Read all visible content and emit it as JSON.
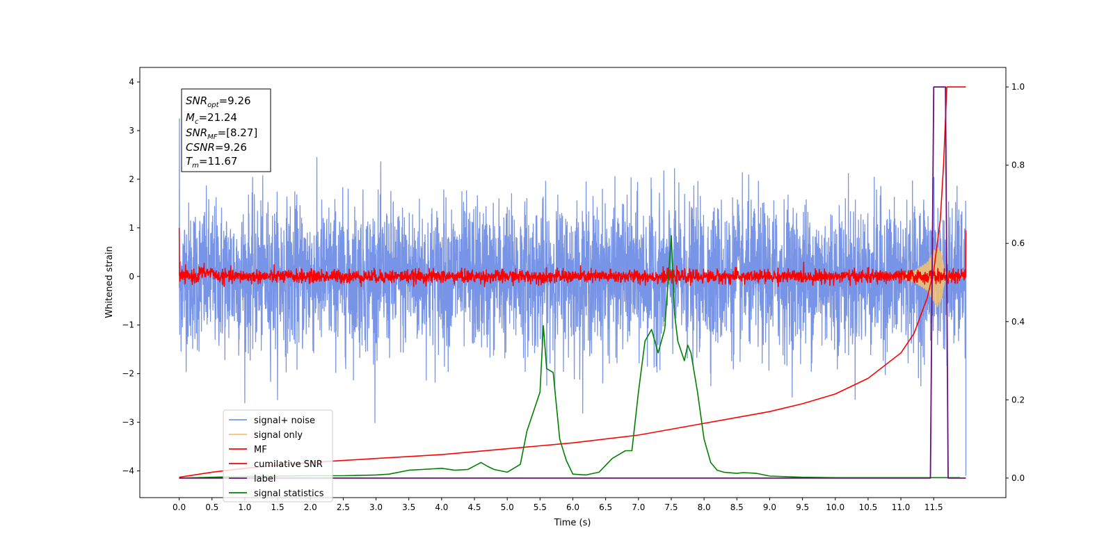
{
  "chart_data": {
    "type": "line",
    "xlabel": "Time (s)",
    "ylabel": "Whitened strain",
    "xlim": [
      -0.6,
      12.6
    ],
    "ylim": [
      -4.55,
      4.3
    ],
    "y2lim": [
      -0.05,
      1.05
    ],
    "x_ticks": [
      "0.0",
      "0.5",
      "1.0",
      "1.5",
      "2.0",
      "2.5",
      "3.0",
      "3.5",
      "4.0",
      "4.5",
      "5.0",
      "5.5",
      "6.0",
      "6.5",
      "7.0",
      "7.5",
      "8.0",
      "8.5",
      "9.0",
      "9.5",
      "10.0",
      "10.5",
      "11.0",
      "11.5"
    ],
    "y_ticks": [
      "4",
      "3",
      "2",
      "1",
      "0",
      "−1",
      "−2",
      "−3",
      "−4"
    ],
    "y2_ticks": [
      "1.0",
      "0.8",
      "0.6",
      "0.4",
      "0.2",
      "0.0"
    ],
    "legend_position": "lower-left",
    "grid": false,
    "annotation": {
      "snr_opt": "9.26",
      "mc": "21.24",
      "snr_mf": "[8.27]",
      "csnr": "9.26",
      "tm": "11.67"
    },
    "series": [
      {
        "name": "signal+ noise",
        "color": "#7894e6",
        "axis": "left",
        "noise_std": 0.75,
        "x_range": [
          0.0,
          11.99
        ]
      },
      {
        "name": "signal only",
        "color": "#f5c26b",
        "axis": "left",
        "envelope": [
          [
            11.0,
            0.05
          ],
          [
            11.2,
            0.12
          ],
          [
            11.4,
            0.3
          ],
          [
            11.55,
            0.65
          ],
          [
            11.62,
            0.5
          ],
          [
            11.67,
            0.1
          ],
          [
            11.99,
            0.0
          ]
        ]
      },
      {
        "name": "MF",
        "color": "#ff0000",
        "axis": "left",
        "noise_std": 0.07,
        "start_value": 1.0,
        "end_value": 0.95,
        "x_range": [
          0.0,
          11.99
        ]
      },
      {
        "name": "cumilative SNR",
        "color": "#ff0000",
        "axis": "right",
        "x": [
          0.0,
          0.5,
          1.0,
          2.0,
          3.0,
          4.0,
          5.0,
          6.0,
          7.0,
          8.0,
          9.0,
          9.5,
          10.0,
          10.5,
          11.0,
          11.2,
          11.4,
          11.5,
          11.6,
          11.65,
          11.7,
          11.99
        ],
        "y": [
          0.002,
          0.015,
          0.025,
          0.04,
          0.05,
          0.06,
          0.075,
          0.09,
          0.11,
          0.14,
          0.17,
          0.19,
          0.215,
          0.255,
          0.32,
          0.37,
          0.46,
          0.53,
          0.66,
          0.8,
          1.0,
          1.0
        ]
      },
      {
        "name": "label",
        "color": "#6a0c7e",
        "axis": "right",
        "x": [
          0.0,
          11.45,
          11.5,
          11.68,
          11.72,
          11.99
        ],
        "y": [
          0.0,
          0.0,
          1.0,
          1.0,
          0.0,
          0.0
        ]
      },
      {
        "name": "signal statistics",
        "color": "#008000",
        "axis": "right",
        "x": [
          0.0,
          0.5,
          1.0,
          1.5,
          2.0,
          2.5,
          3.0,
          3.2,
          3.5,
          3.7,
          4.0,
          4.2,
          4.4,
          4.6,
          4.7,
          4.8,
          5.0,
          5.2,
          5.3,
          5.4,
          5.5,
          5.55,
          5.6,
          5.7,
          5.8,
          5.9,
          6.0,
          6.2,
          6.4,
          6.6,
          6.8,
          6.9,
          7.0,
          7.1,
          7.2,
          7.3,
          7.4,
          7.45,
          7.5,
          7.55,
          7.6,
          7.7,
          7.75,
          7.8,
          7.9,
          8.0,
          8.1,
          8.2,
          8.3,
          8.5,
          8.6,
          8.8,
          9.0,
          9.5,
          10.0,
          11.0,
          11.9
        ],
        "y": [
          0.0,
          0.002,
          0.004,
          0.005,
          0.006,
          0.006,
          0.008,
          0.01,
          0.02,
          0.022,
          0.025,
          0.02,
          0.022,
          0.04,
          0.03,
          0.022,
          0.015,
          0.035,
          0.12,
          0.17,
          0.22,
          0.39,
          0.28,
          0.27,
          0.1,
          0.045,
          0.01,
          0.008,
          0.015,
          0.05,
          0.07,
          0.07,
          0.22,
          0.35,
          0.38,
          0.32,
          0.38,
          0.5,
          0.62,
          0.42,
          0.35,
          0.3,
          0.34,
          0.32,
          0.22,
          0.1,
          0.04,
          0.02,
          0.015,
          0.012,
          0.014,
          0.012,
          0.005,
          0.002,
          0.001,
          0.001,
          0.001
        ]
      }
    ]
  }
}
